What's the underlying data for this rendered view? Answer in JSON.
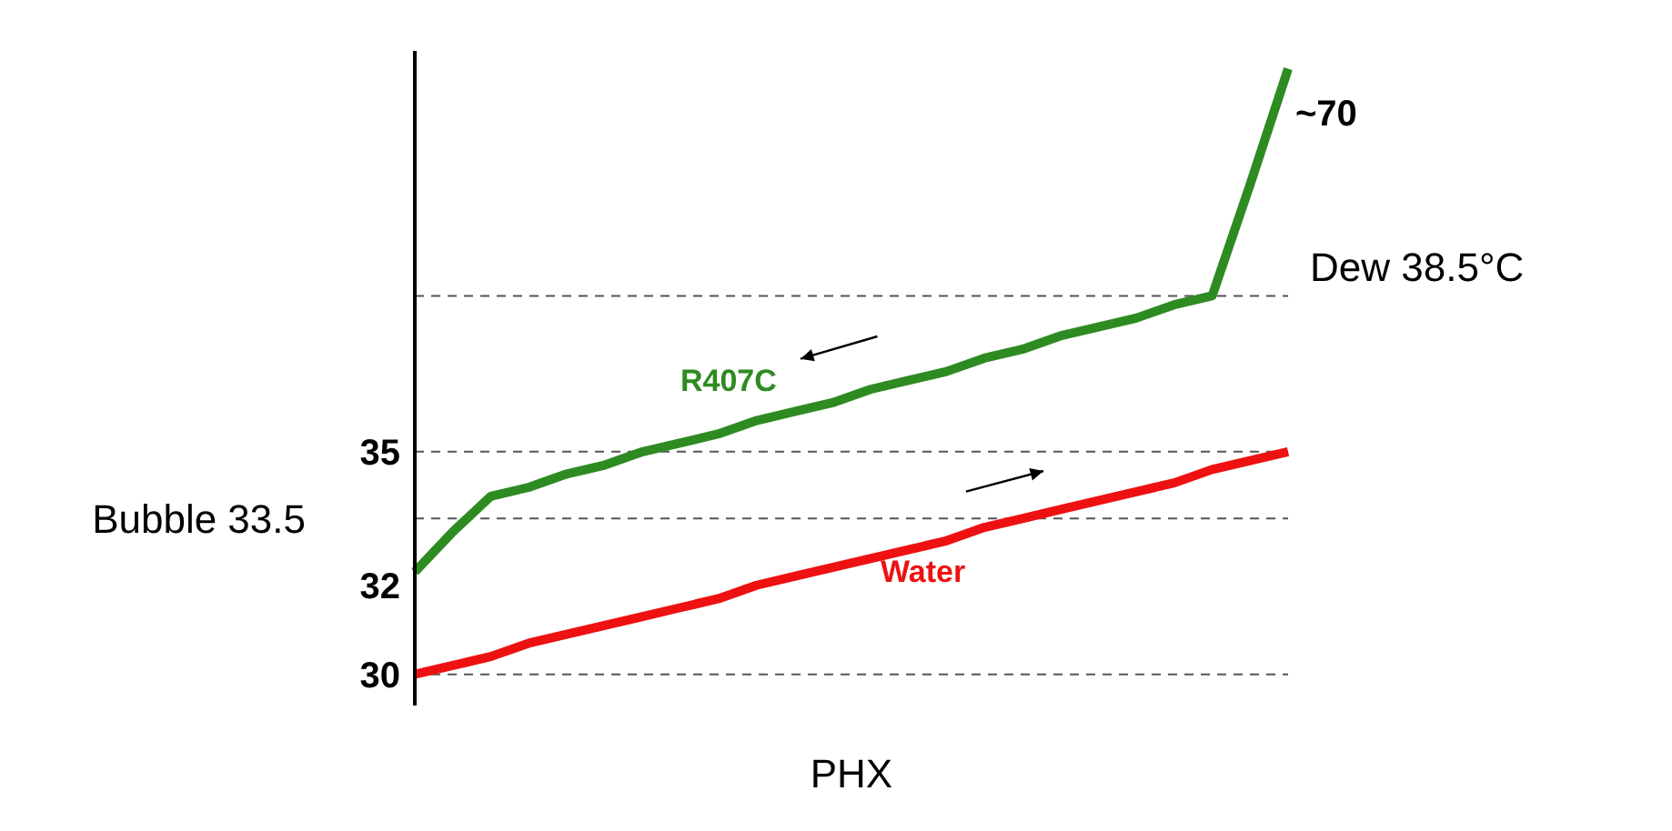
{
  "chart_data": {
    "type": "line",
    "xlabel": "PHX",
    "categories": [
      null,
      null,
      null,
      null,
      null,
      null,
      null,
      null,
      null,
      null,
      null,
      null,
      null,
      null,
      null,
      null,
      null,
      null,
      null,
      null,
      null,
      null,
      null,
      null
    ],
    "ylim": [
      29.3,
      44
    ],
    "yticks": [
      30,
      32,
      35
    ],
    "tick_labels": "y",
    "marker": "none",
    "line_style": "solid",
    "series": [
      {
        "name": "R407C",
        "color": "#2e8b22",
        "values": [
          32.3,
          33.2,
          34.0,
          34.2,
          34.5,
          34.7,
          35.0,
          35.2,
          35.4,
          35.7,
          35.9,
          36.1,
          36.4,
          36.6,
          36.8,
          37.1,
          37.3,
          37.6,
          37.8,
          38.0,
          38.3,
          38.5,
          41.0,
          43.6
        ]
      },
      {
        "name": "Water",
        "color": "#ee1111",
        "values": [
          30,
          30.2,
          30.4,
          30.7,
          30.9,
          31.1,
          31.3,
          31.5,
          31.7,
          32.0,
          32.2,
          32.4,
          32.6,
          32.8,
          33.0,
          33.3,
          33.5,
          33.7,
          33.9,
          34.1,
          34.3,
          34.6,
          34.8,
          35.0
        ]
      }
    ],
    "ref_lines": [
      {
        "axis": "y",
        "value": 38.5,
        "label": "Dew 38.5°C",
        "line_style": "dashed",
        "color": "#555555"
      },
      {
        "axis": "y",
        "value": 33.5,
        "label": "Bubble 33.5",
        "line_style": "dashed",
        "color": "#555555"
      },
      {
        "axis": "y",
        "value": 35,
        "label": null,
        "line_style": "dashed",
        "color": "#555555"
      },
      {
        "axis": "y",
        "value": 30,
        "label": null,
        "line_style": "dashed",
        "color": "#555555"
      }
    ],
    "annotations": [
      "~70"
    ]
  }
}
